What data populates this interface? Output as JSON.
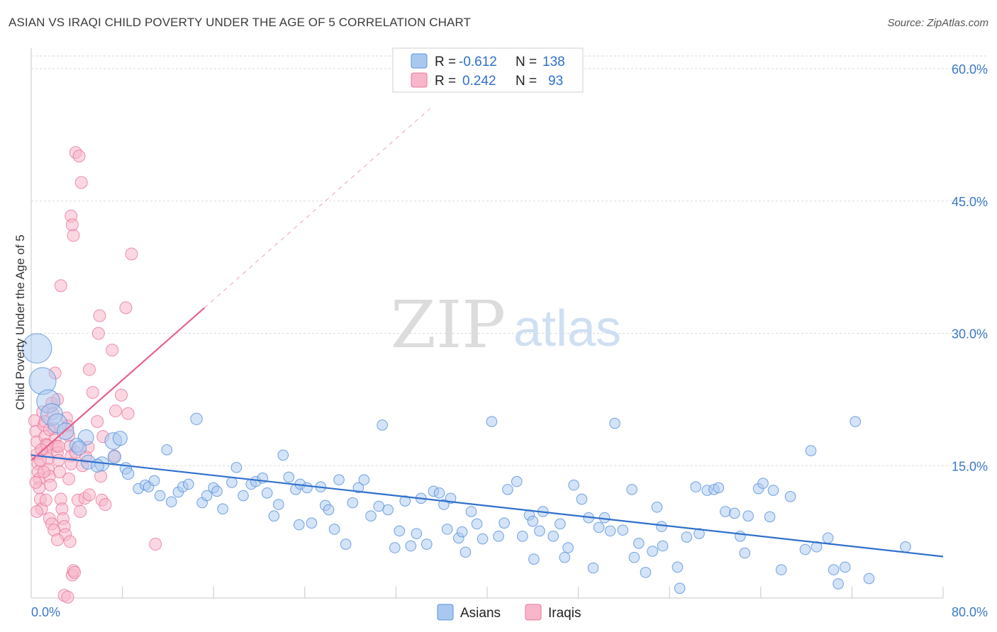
{
  "title": "ASIAN VS IRAQI CHILD POVERTY UNDER THE AGE OF 5 CORRELATION CHART",
  "source": "Source: ZipAtlas.com",
  "watermark": {
    "zip": "ZIP",
    "atlas": "atlas"
  },
  "colors": {
    "asian_fill": "#a9c8f0",
    "asian_stroke": "#5b93dc",
    "asian_line": "#2f6fcc",
    "iraqi_fill": "#f7b6ca",
    "iraqi_stroke": "#e8779c",
    "iraqi_line": "#e8608c",
    "tick_text": "#3b78c9",
    "grid": "#d9d9d9"
  },
  "legend": {
    "rows": [
      {
        "r_label": "R =",
        "r_value": "-0.612",
        "n_label": "N =",
        "n_value": "138",
        "series": "asian"
      },
      {
        "r_label": "R =",
        "r_value": "0.242",
        "n_label": "N =",
        "n_value": "93",
        "series": "iraqi"
      }
    ]
  },
  "bottom_legend": [
    {
      "label": "Asians",
      "series": "asian"
    },
    {
      "label": "Iraqis",
      "series": "iraqi"
    }
  ],
  "chart_data": {
    "type": "scatter",
    "title": "ASIAN VS IRAQI CHILD POVERTY UNDER THE AGE OF 5 CORRELATION CHART",
    "xlabel": "",
    "ylabel": "Child Poverty Under the Age of 5",
    "xlim": [
      0,
      80
    ],
    "ylim": [
      0,
      60
    ],
    "x_tick_labels": [
      "0.0%",
      "80.0%"
    ],
    "y_ticks": [
      15,
      30,
      45,
      60
    ],
    "y_tick_labels": [
      "15.0%",
      "30.0%",
      "45.0%",
      "60.0%"
    ],
    "grid": true,
    "series": [
      {
        "name": "Asians",
        "key": "asian",
        "trend": {
          "x0": 0,
          "y0": 16.2,
          "x1": 80,
          "y1": 4.7
        },
        "points": [
          [
            0.5,
            28.3,
            2.2
          ],
          [
            1,
            24.6,
            2
          ],
          [
            1.5,
            22.3,
            1.7
          ],
          [
            1.8,
            20.8,
            1.6
          ],
          [
            2.3,
            19.8,
            1.4
          ],
          [
            3,
            18.9,
            1.2
          ],
          [
            4.8,
            18.2,
            1.1
          ],
          [
            4,
            17.3,
            1
          ],
          [
            4.2,
            17,
            1
          ],
          [
            5,
            15.4,
            1
          ],
          [
            7.2,
            17.8,
            1.2
          ],
          [
            7.8,
            18.1,
            1
          ],
          [
            6.2,
            15.2,
            1
          ],
          [
            5.8,
            15,
            0.9
          ],
          [
            7.3,
            16,
            0.9
          ],
          [
            8.3,
            14.7,
            0.8
          ],
          [
            8.5,
            14.1,
            0.8
          ],
          [
            9.4,
            12.4,
            0.7
          ],
          [
            10,
            12.8,
            0.7
          ],
          [
            10.3,
            12.6,
            0.7
          ],
          [
            10.8,
            13.3,
            0.7
          ],
          [
            11.3,
            11.6,
            0.7
          ],
          [
            11.9,
            16.8,
            0.7
          ],
          [
            12.3,
            10.9,
            0.7
          ],
          [
            12.9,
            12,
            0.7
          ],
          [
            13.3,
            12.6,
            0.7
          ],
          [
            13.8,
            12.9,
            0.7
          ],
          [
            14.5,
            20.3,
            0.8
          ],
          [
            15,
            10.8,
            0.7
          ],
          [
            15.4,
            11.6,
            0.7
          ],
          [
            16,
            12.5,
            0.7
          ],
          [
            16.3,
            12.1,
            0.7
          ],
          [
            16.8,
            10.1,
            0.7
          ],
          [
            17.6,
            13.1,
            0.7
          ],
          [
            18,
            14.8,
            0.7
          ],
          [
            18.6,
            11.6,
            0.7
          ],
          [
            19.3,
            12.9,
            0.7
          ],
          [
            19.7,
            13.2,
            0.7
          ],
          [
            20.3,
            13.6,
            0.7
          ],
          [
            20.7,
            11.9,
            0.7
          ],
          [
            21.3,
            9.3,
            0.7
          ],
          [
            21.7,
            10.6,
            0.7
          ],
          [
            22.1,
            16.2,
            0.7
          ],
          [
            22.6,
            13.7,
            0.7
          ],
          [
            23.2,
            12.3,
            0.7
          ],
          [
            23.6,
            12.9,
            0.7
          ],
          [
            24.2,
            12.5,
            0.7
          ],
          [
            24.6,
            8.5,
            0.7
          ],
          [
            25.4,
            12.6,
            0.7
          ],
          [
            25.8,
            10.5,
            0.7
          ],
          [
            26.6,
            7.8,
            0.7
          ],
          [
            27,
            13.4,
            0.7
          ],
          [
            27.6,
            6.1,
            0.7
          ],
          [
            28.2,
            10.8,
            0.7
          ],
          [
            28.7,
            12.5,
            0.7
          ],
          [
            29.2,
            13.4,
            0.7
          ],
          [
            29.8,
            9.3,
            0.7
          ],
          [
            30.5,
            10.4,
            0.7
          ],
          [
            30.8,
            19.6,
            0.7
          ],
          [
            31.3,
            10,
            0.7
          ],
          [
            31.9,
            5.7,
            0.7
          ],
          [
            32.3,
            7.6,
            0.7
          ],
          [
            32.8,
            11,
            0.7
          ],
          [
            33.3,
            5.9,
            0.7
          ],
          [
            33.8,
            7.3,
            0.7
          ],
          [
            34.2,
            11.3,
            0.7
          ],
          [
            34.7,
            6.1,
            0.7
          ],
          [
            35.3,
            12.1,
            0.7
          ],
          [
            35.8,
            11.9,
            0.7
          ],
          [
            36.2,
            10.6,
            0.7
          ],
          [
            36.8,
            11.3,
            0.7
          ],
          [
            37.5,
            6.8,
            0.7
          ],
          [
            37.8,
            7.5,
            0.7
          ],
          [
            38.6,
            9.8,
            0.7
          ],
          [
            39.1,
            8.4,
            0.7
          ],
          [
            39.6,
            6.7,
            0.7
          ],
          [
            40.4,
            20,
            0.7
          ],
          [
            41,
            7,
            0.7
          ],
          [
            41.5,
            8.5,
            0.7
          ],
          [
            41.8,
            12.3,
            0.7
          ],
          [
            42.6,
            13.2,
            0.7
          ],
          [
            43.1,
            7,
            0.7
          ],
          [
            43.7,
            9.4,
            0.7
          ],
          [
            44,
            8.7,
            0.7
          ],
          [
            44.6,
            7.6,
            0.7
          ],
          [
            44.9,
            9.8,
            0.7
          ],
          [
            45.8,
            7,
            0.7
          ],
          [
            46.4,
            8.4,
            0.7
          ],
          [
            47.1,
            5.7,
            0.7
          ],
          [
            47.6,
            12.8,
            0.7
          ],
          [
            48.3,
            11.2,
            0.7
          ],
          [
            49.3,
            3.4,
            0.7
          ],
          [
            49.8,
            8,
            0.7
          ],
          [
            50.8,
            7.6,
            0.7
          ],
          [
            51.2,
            19.8,
            0.7
          ],
          [
            51.9,
            7.7,
            0.7
          ],
          [
            52.7,
            12.3,
            0.7
          ],
          [
            53.3,
            6.2,
            0.7
          ],
          [
            53.9,
            2.9,
            0.7
          ],
          [
            54.5,
            5.3,
            0.7
          ],
          [
            54.9,
            10.3,
            0.7
          ],
          [
            55.3,
            8.1,
            0.7
          ],
          [
            55.4,
            5.9,
            0.7
          ],
          [
            56.7,
            3.5,
            0.7
          ],
          [
            56.9,
            1.1,
            0.7
          ],
          [
            57.5,
            6.9,
            0.7
          ],
          [
            58.6,
            7.3,
            0.7
          ],
          [
            59.3,
            12.2,
            0.7
          ],
          [
            59.9,
            12.3,
            0.7
          ],
          [
            60.3,
            12.5,
            0.7
          ],
          [
            60.9,
            9.8,
            0.7
          ],
          [
            61.7,
            9.6,
            0.7
          ],
          [
            62.2,
            7,
            0.7
          ],
          [
            62.9,
            9.3,
            0.7
          ],
          [
            63.8,
            12.4,
            0.7
          ],
          [
            64.2,
            13,
            0.7
          ],
          [
            64.8,
            9.2,
            0.7
          ],
          [
            65.8,
            3.2,
            0.7
          ],
          [
            66.6,
            11.5,
            0.7
          ],
          [
            67.9,
            5.5,
            0.7
          ],
          [
            68.4,
            16.7,
            0.7
          ],
          [
            68.9,
            5.8,
            0.7
          ],
          [
            69.9,
            6.8,
            0.7
          ],
          [
            70.4,
            3.2,
            0.7
          ],
          [
            70.8,
            1.6,
            0.7
          ],
          [
            71.4,
            3.5,
            0.7
          ],
          [
            72.3,
            20,
            0.7
          ],
          [
            73.5,
            2.2,
            0.7
          ],
          [
            76.7,
            5.8,
            0.7
          ],
          [
            58.3,
            12.6,
            0.7
          ],
          [
            52.9,
            4.6,
            0.7
          ],
          [
            48.9,
            9.1,
            0.7
          ],
          [
            46.8,
            4.6,
            0.7
          ],
          [
            26.1,
            10,
            0.7
          ],
          [
            23.5,
            8.3,
            0.7
          ],
          [
            38.1,
            5.2,
            0.7
          ],
          [
            36.5,
            7.8,
            0.7
          ],
          [
            44.1,
            4.4,
            0.7
          ],
          [
            65.1,
            12.2,
            0.7
          ],
          [
            62.6,
            5.1,
            0.7
          ],
          [
            50.3,
            9.1,
            0.7
          ]
        ]
      },
      {
        "name": "Iraqis",
        "key": "iraqi",
        "trend": {
          "x0": 0,
          "y0": 15.6,
          "x1": 15.2,
          "y1": 32.9
        },
        "trend_dashed_to": {
          "x": 35,
          "y": 55.5
        },
        "points": [
          [
            0.3,
            20.1
          ],
          [
            0.4,
            18.9
          ],
          [
            0.5,
            17.7
          ],
          [
            0.5,
            16.3
          ],
          [
            0.6,
            15.2
          ],
          [
            0.6,
            14.3
          ],
          [
            0.7,
            13.5
          ],
          [
            0.7,
            12.5
          ],
          [
            0.8,
            11.2
          ],
          [
            0.9,
            10.1
          ],
          [
            1,
            21.1
          ],
          [
            1.1,
            19.6
          ],
          [
            1.2,
            18.3
          ],
          [
            1.3,
            17.4
          ],
          [
            1.4,
            16.6
          ],
          [
            1.5,
            15.8
          ],
          [
            1.5,
            14.6
          ],
          [
            1.6,
            13.8
          ],
          [
            1.7,
            12.8
          ],
          [
            1.8,
            22.1
          ],
          [
            1.9,
            20.9
          ],
          [
            2,
            19.2
          ],
          [
            2.1,
            18.1
          ],
          [
            2.2,
            17.2
          ],
          [
            2.3,
            16.5
          ],
          [
            2.4,
            15.6
          ],
          [
            2.5,
            14.3
          ],
          [
            2.6,
            11.2
          ],
          [
            2.7,
            10.1
          ],
          [
            2.8,
            9
          ],
          [
            2.9,
            8.1
          ],
          [
            3,
            7.2
          ],
          [
            3.1,
            20.4
          ],
          [
            3.2,
            19.5
          ],
          [
            3.3,
            18.4
          ],
          [
            3.4,
            17.2
          ],
          [
            3.5,
            16.1
          ],
          [
            3.6,
            2.6
          ],
          [
            3.7,
            3.1
          ],
          [
            3.8,
            2.9
          ],
          [
            2.9,
            0.3
          ],
          [
            3.2,
            0.1
          ],
          [
            0.4,
            13.1
          ],
          [
            0.5,
            9.8
          ],
          [
            1.1,
            14.3
          ],
          [
            1.3,
            11.1
          ],
          [
            1.6,
            9
          ],
          [
            1.8,
            8.4
          ],
          [
            2,
            7.7
          ],
          [
            2.3,
            6.6
          ],
          [
            3.4,
            6.4
          ],
          [
            3.3,
            13.5
          ],
          [
            3.5,
            15.2
          ],
          [
            3.9,
            16.5
          ],
          [
            4.1,
            11.1
          ],
          [
            4.3,
            9.8
          ],
          [
            4.7,
            11.3
          ],
          [
            5.1,
            11.7
          ],
          [
            4.5,
            15
          ],
          [
            4.8,
            16
          ],
          [
            5,
            17.1
          ],
          [
            5.1,
            25.9
          ],
          [
            5.4,
            23.3
          ],
          [
            5.8,
            20
          ],
          [
            6,
            32
          ],
          [
            5.9,
            30
          ],
          [
            6.1,
            13.8
          ],
          [
            6.2,
            11.1
          ],
          [
            6.5,
            10.6
          ],
          [
            6.3,
            18.3
          ],
          [
            7.4,
            21.2
          ],
          [
            7.9,
            23
          ],
          [
            7.1,
            28.1
          ],
          [
            8.3,
            32.9
          ],
          [
            8.8,
            39
          ],
          [
            8.5,
            20.9
          ],
          [
            7.3,
            16.1
          ],
          [
            3.5,
            43.3
          ],
          [
            3.6,
            42.3
          ],
          [
            3.7,
            41.1
          ],
          [
            3.9,
            50.5
          ],
          [
            4.2,
            50.1
          ],
          [
            4.4,
            47.1
          ],
          [
            2.6,
            35.4
          ],
          [
            2.1,
            25.5
          ],
          [
            2.3,
            22.5
          ],
          [
            1.2,
            20
          ],
          [
            1.6,
            19.1
          ],
          [
            1.4,
            17.3
          ],
          [
            0.9,
            16.8
          ],
          [
            0.8,
            15.6
          ],
          [
            10.9,
            6.1
          ],
          [
            2.4,
            17.2
          ]
        ]
      }
    ]
  },
  "axis": {
    "y_label": "Child Poverty Under the Age of 5",
    "x_left": "0.0%",
    "x_right": "80.0%"
  }
}
